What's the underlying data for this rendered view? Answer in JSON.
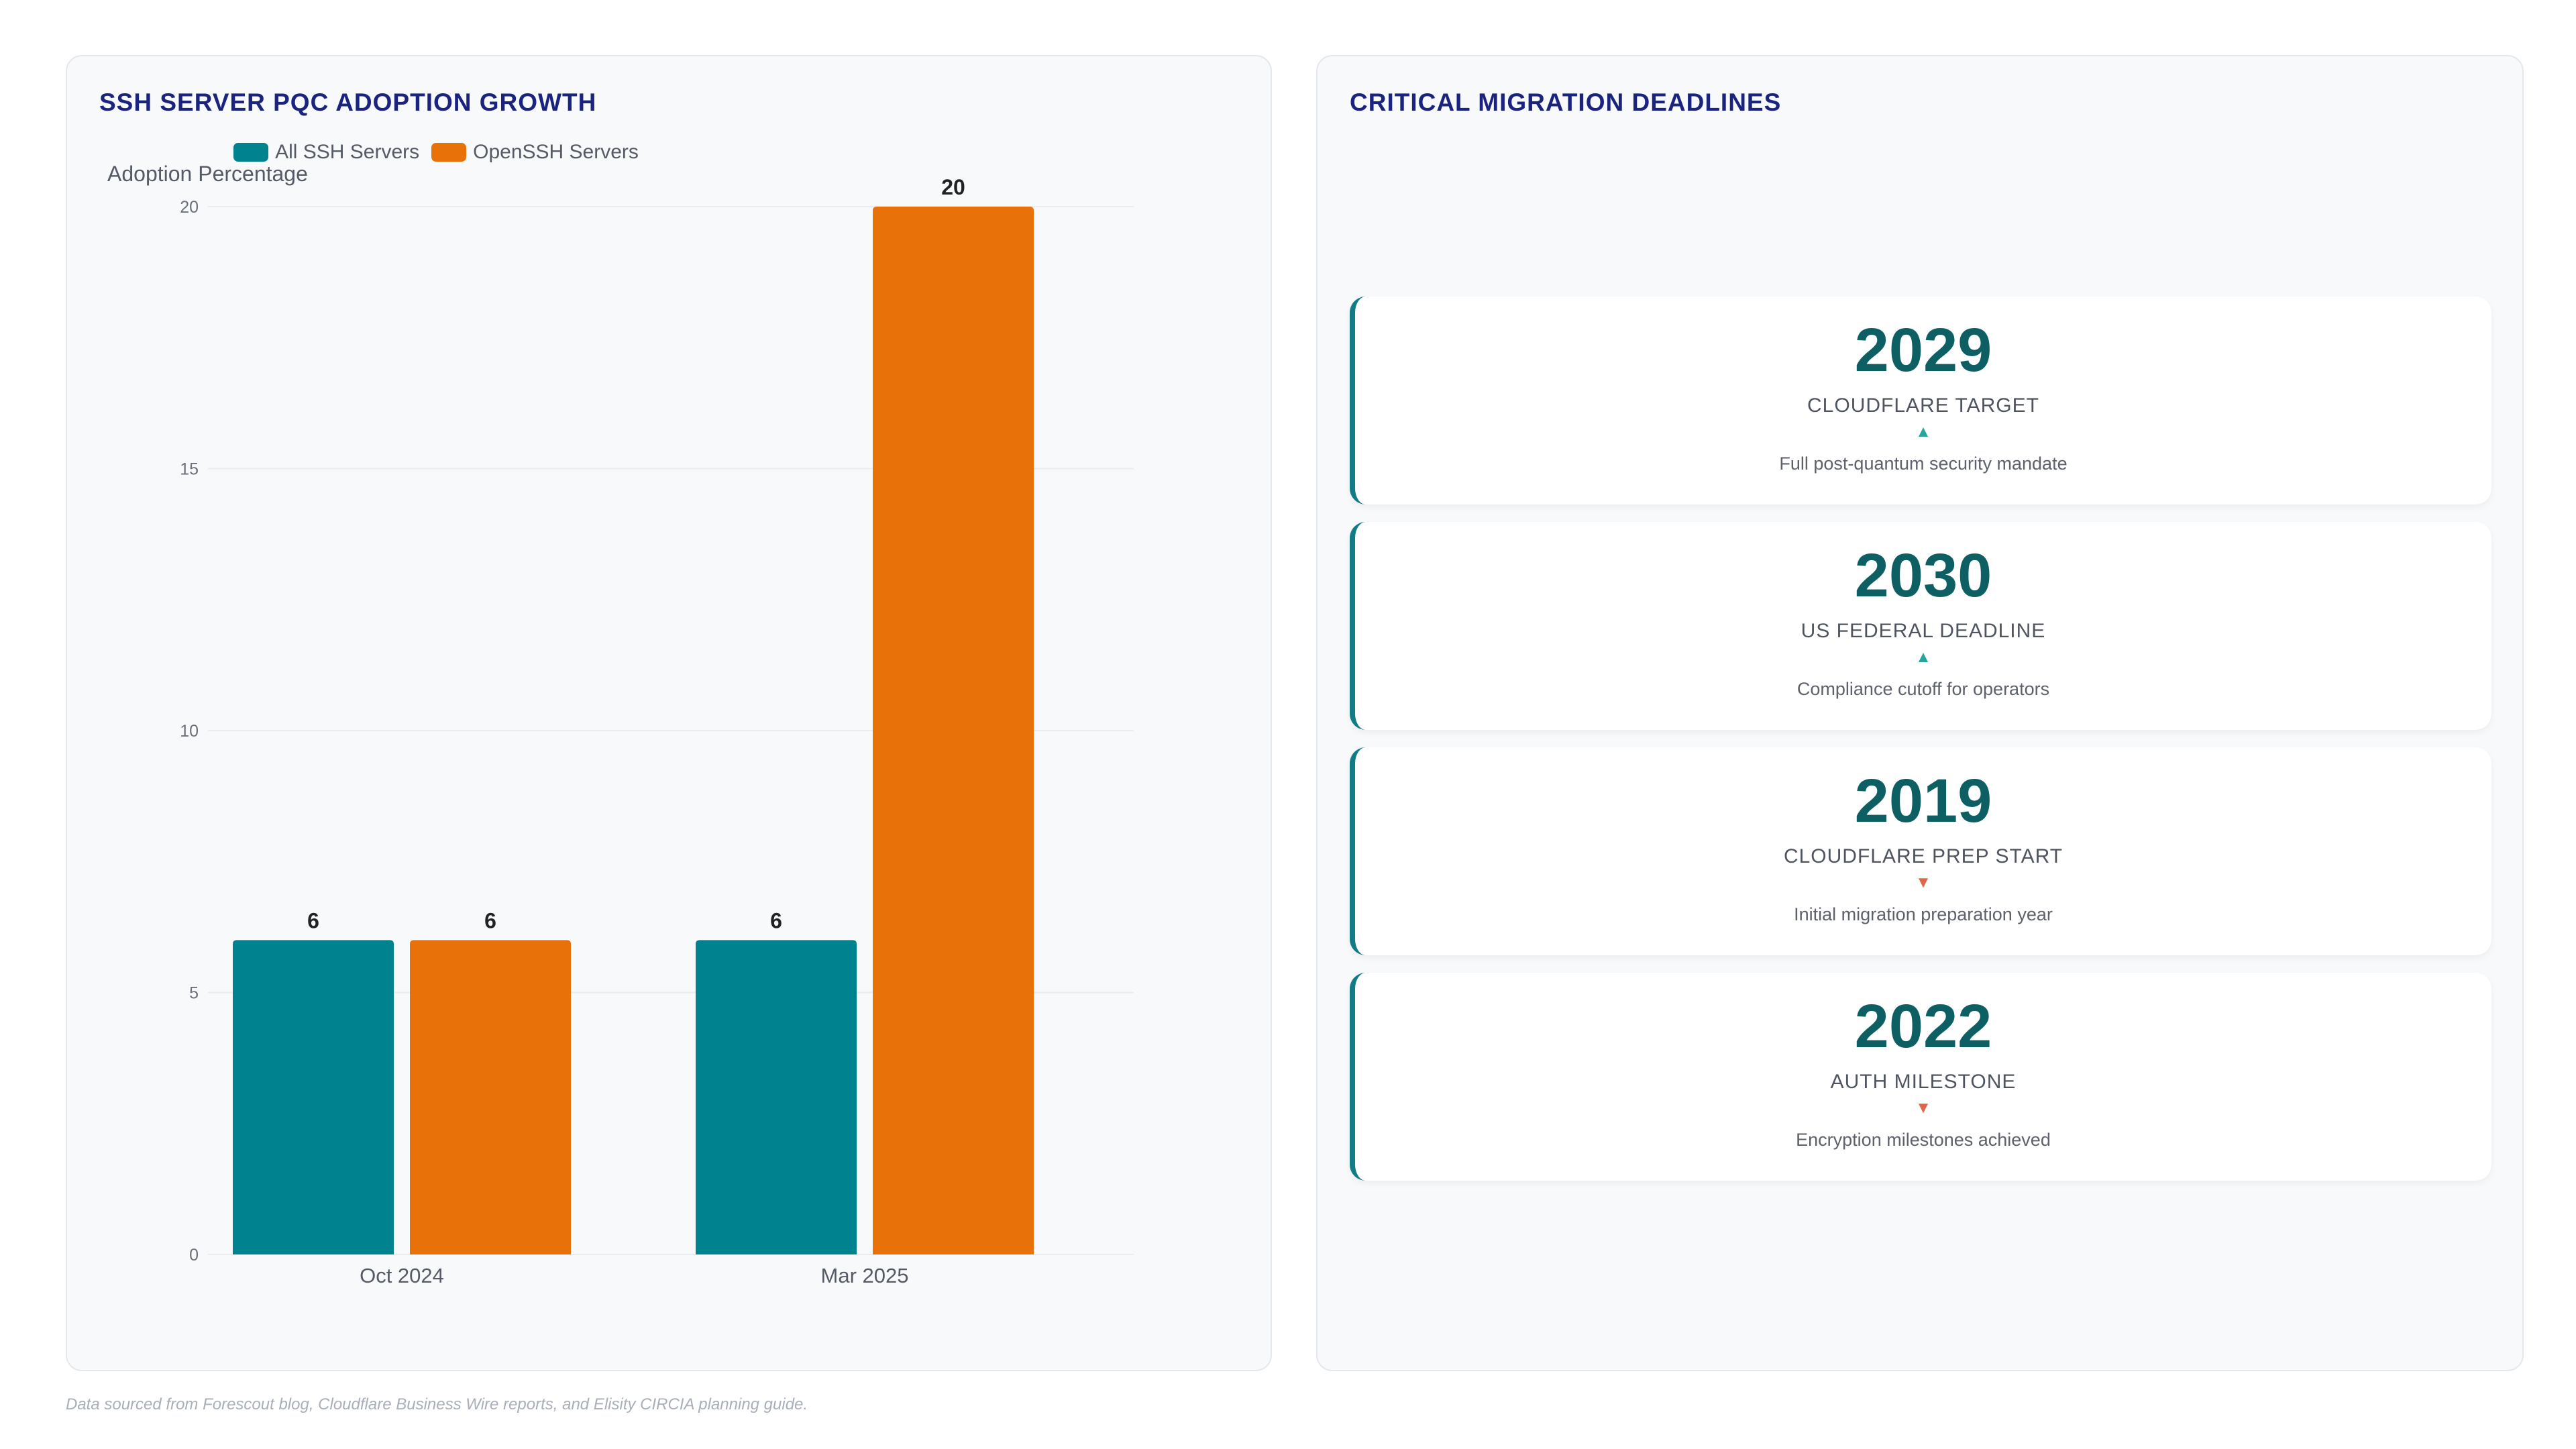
{
  "chart_panel": {
    "title": "SSH SERVER PQC ADOPTION GROWTH"
  },
  "chart_data": {
    "type": "bar",
    "title": "SSH SERVER PQC ADOPTION GROWTH",
    "ylabel": "Adoption Percentage",
    "xlabel": "",
    "categories": [
      "Oct 2024",
      "Mar 2025"
    ],
    "series": [
      {
        "name": "All SSH Servers",
        "values": [
          6,
          6
        ],
        "color": "#00838f"
      },
      {
        "name": "OpenSSH Servers",
        "values": [
          6,
          20
        ],
        "color": "#e8710a"
      }
    ],
    "ylim": [
      0,
      20
    ],
    "yticks": [
      0,
      5,
      10,
      15,
      20
    ],
    "grid": true,
    "legend": "top-center",
    "data_labels": true
  },
  "deadlines": {
    "title": "CRITICAL MIGRATION DEADLINES",
    "cards": [
      {
        "year": "2029",
        "label": "CLOUDFLARE TARGET",
        "trend": "▲",
        "trend_dir": "up",
        "desc": "Full post-quantum security mandate"
      },
      {
        "year": "2030",
        "label": "US FEDERAL DEADLINE",
        "trend": "▲",
        "trend_dir": "up",
        "desc": "Compliance cutoff for operators"
      },
      {
        "year": "2019",
        "label": "CLOUDFLARE PREP START",
        "trend": "▼",
        "trend_dir": "down",
        "desc": "Initial migration preparation year"
      },
      {
        "year": "2022",
        "label": "AUTH MILESTONE",
        "trend": "▼",
        "trend_dir": "down",
        "desc": "Encryption milestones achieved"
      }
    ]
  },
  "footnote": "Data sourced from Forescout blog, Cloudflare Business Wire reports, and Elisity CIRCIA planning guide."
}
